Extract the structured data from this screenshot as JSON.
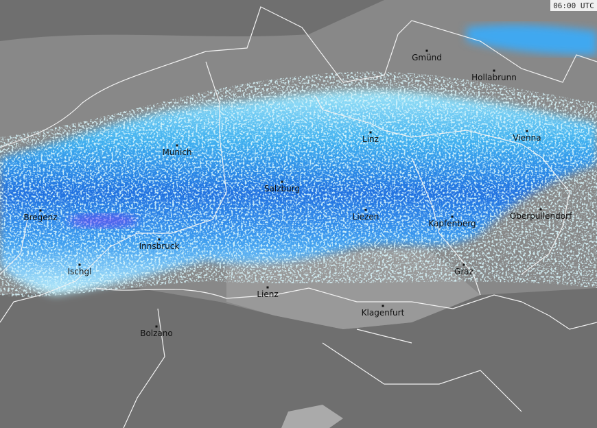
{
  "timestamp": "06:00 UTC",
  "cities": [
    "Gmünd",
    "Hollabrunn",
    "Linz",
    "Vienna",
    "Munich",
    "Salzburg",
    "Bregenz",
    "Liezen",
    "Kapfenberg",
    "Oberpullendorf",
    "Innsbruck",
    "Ischgl",
    "Graz",
    "Lienz",
    "Klagenfurt",
    "Bolzano"
  ]
}
